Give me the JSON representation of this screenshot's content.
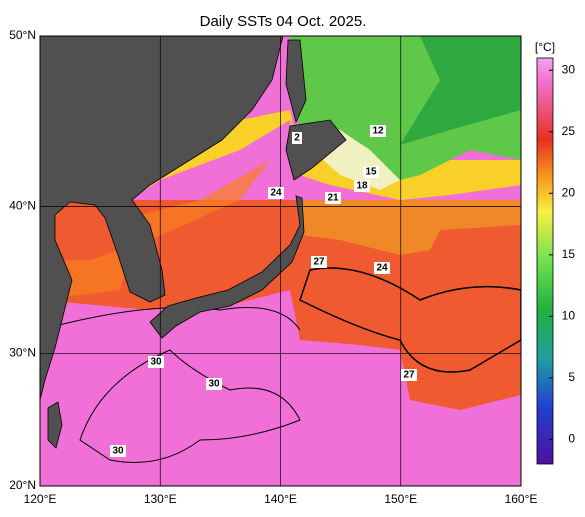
{
  "title": "Daily SSTs 04 Oct. 2025.",
  "map": {
    "lonlim": [
      120,
      160
    ],
    "latlim": [
      20,
      50
    ],
    "xticks": [
      {
        "value": 120,
        "label": "120°E"
      },
      {
        "value": 130,
        "label": "130°E"
      },
      {
        "value": 140,
        "label": "140°E"
      },
      {
        "value": 150,
        "label": "150°E"
      },
      {
        "value": 160,
        "label": "160°E"
      }
    ],
    "yticks": [
      {
        "value": 20,
        "label": "20°N"
      },
      {
        "value": 30,
        "label": "30°N"
      },
      {
        "value": 40,
        "label": "40°N"
      },
      {
        "value": 50,
        "label": "50°N"
      }
    ]
  },
  "colorbar": {
    "unit": "[°C]",
    "lim": [
      -2,
      31
    ],
    "ticks": [
      0,
      5,
      10,
      15,
      20,
      25,
      30
    ]
  },
  "contour_labels": [
    "2",
    "12",
    "15",
    "18",
    "21",
    "24",
    "27",
    "24",
    "30",
    "30",
    "27",
    "30"
  ]
}
